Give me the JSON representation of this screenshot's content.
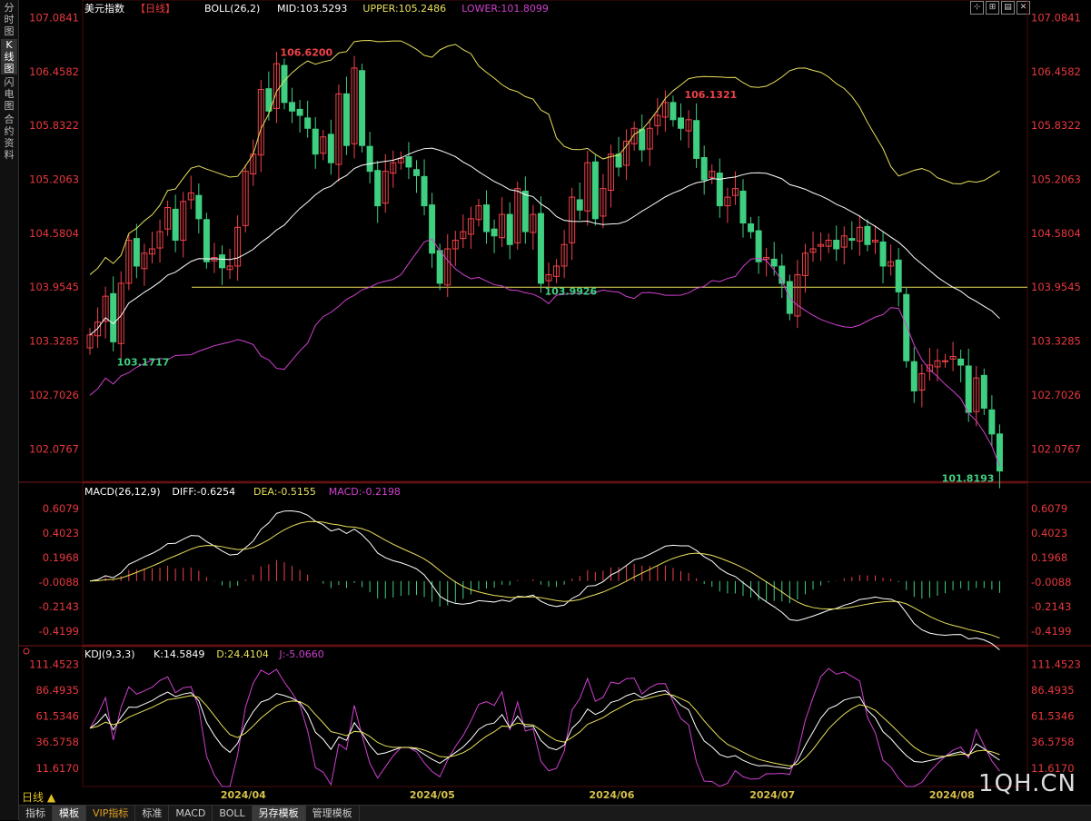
{
  "sidebar": {
    "tabs": [
      {
        "label": "分时图",
        "active": false
      },
      {
        "label": "K线图",
        "active": true
      },
      {
        "label": "闪电图",
        "active": false
      },
      {
        "label": "合约资料",
        "active": false
      }
    ]
  },
  "header": {
    "title": "美元指数",
    "period_tag": "【日线】",
    "boll_label": "BOLL(26,2)",
    "mid": "MID:103.5293",
    "upper": "UPPER:105.2486",
    "lower": "LOWER:101.8099"
  },
  "macd_header": {
    "label": "MACD(26,12,9)",
    "diff": "DIFF:-0.6254",
    "dea": "DEA:-0.5155",
    "macd": "MACD:-0.2198"
  },
  "kdj_header": {
    "label": "KDJ(9,3,3)",
    "k": "K:14.5849",
    "d": "D:24.4104",
    "j": "J:-5.0660"
  },
  "colors": {
    "up": "#f0424a",
    "down": "#3fcf80",
    "boll_mid": "#ffffff",
    "boll_upper": "#e8e05a",
    "boll_lower": "#d040d0",
    "axis": "#e8383d"
  },
  "toolbar": {
    "icons": [
      "fit-icon",
      "zoom-icon",
      "layout-icon",
      "close-icon"
    ]
  },
  "period_button": "日线 ▲",
  "bottom_tabs": [
    {
      "label": "指标",
      "active": false
    },
    {
      "label": "模板",
      "active": true
    },
    {
      "label": "VIP指标",
      "active": false,
      "vip": true
    },
    {
      "label": "标准",
      "active": false
    },
    {
      "label": "MACD",
      "active": false
    },
    {
      "label": "BOLL",
      "active": false
    },
    {
      "label": "另存模板",
      "active": true
    },
    {
      "label": "管理模板",
      "active": false
    }
  ],
  "watermark": "1QH.CN",
  "chart_data": [
    {
      "type": "candlestick",
      "y_ticks": [
        "107.0841",
        "106.4582",
        "105.8322",
        "105.2063",
        "104.5804",
        "103.9545",
        "103.3285",
        "102.7026",
        "102.0767"
      ],
      "ylim": [
        101.7,
        107.1
      ],
      "x_ticks": [
        "2024/04",
        "2024/05",
        "2024/06",
        "2024/07",
        "2024/08"
      ],
      "hline": 103.9545,
      "annotations": [
        {
          "text": "106.6200",
          "type": "high"
        },
        {
          "text": "106.1321",
          "type": "high"
        },
        {
          "text": "103.1717",
          "type": "low"
        },
        {
          "text": "103.9926",
          "type": "low"
        },
        {
          "text": "101.8193",
          "type": "low"
        }
      ],
      "closes": [
        103.4,
        103.55,
        103.85,
        103.32,
        104.0,
        104.5,
        104.2,
        104.35,
        104.4,
        104.6,
        104.88,
        104.5,
        104.95,
        105.05,
        104.75,
        104.25,
        104.3,
        104.18,
        104.2,
        104.65,
        105.3,
        105.5,
        106.25,
        106.0,
        106.55,
        106.1,
        106.0,
        105.95,
        105.8,
        105.5,
        105.7,
        105.4,
        106.2,
        105.6,
        106.5,
        105.6,
        105.3,
        104.9,
        105.3,
        105.4,
        105.45,
        105.35,
        105.25,
        104.9,
        104.35,
        104.0,
        104.4,
        104.5,
        104.6,
        104.75,
        104.9,
        104.6,
        104.55,
        104.8,
        104.45,
        105.1,
        104.6,
        104.8,
        104.0,
        104.1,
        104.2,
        104.45,
        105.0,
        104.85,
        105.4,
        104.75,
        105.1,
        105.5,
        105.35,
        105.65,
        105.8,
        105.55,
        105.8,
        105.95,
        106.1,
        105.9,
        105.8,
        105.9,
        105.45,
        105.2,
        105.3,
        104.9,
        105.0,
        105.1,
        104.7,
        104.6,
        104.25,
        104.3,
        104.2,
        104.0,
        103.65,
        104.1,
        104.35,
        104.4,
        104.45,
        104.5,
        104.4,
        104.55,
        104.5,
        104.65,
        104.45,
        104.5,
        104.2,
        104.25,
        103.9,
        103.1,
        102.75,
        102.95,
        103.05,
        103.1,
        103.1,
        103.15,
        103.05,
        102.5,
        102.9,
        102.55,
        102.25,
        101.82
      ],
      "boll_mid_first": 103.78,
      "boll_mid_last": 103.5293,
      "boll_upper_last": 105.2486,
      "boll_lower_last": 101.8099
    },
    {
      "type": "macd",
      "y_ticks": [
        "0.6079",
        "0.4023",
        "0.1968",
        "-0.0088",
        "-0.2143",
        "-0.4199"
      ],
      "ylim": [
        -0.52,
        0.7
      ]
    },
    {
      "type": "kdj",
      "y_ticks": [
        "111.4523",
        "86.4935",
        "61.5346",
        "36.5758",
        "11.6170"
      ],
      "ylim": [
        -6,
        118
      ]
    }
  ]
}
